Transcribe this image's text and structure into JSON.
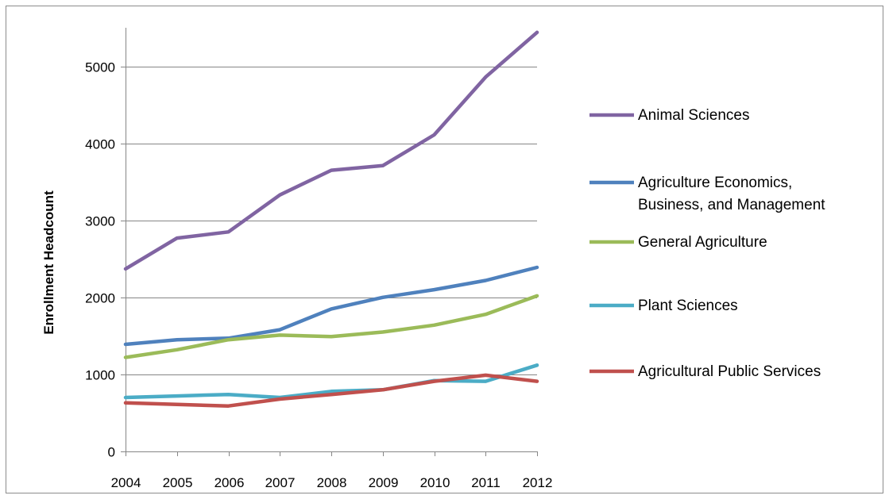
{
  "chart_data": {
    "type": "line",
    "title": "",
    "xlabel": "",
    "ylabel": "Enrollment Headcount",
    "ylim": [
      0,
      5500
    ],
    "yticks": [
      0,
      1000,
      2000,
      3000,
      4000,
      5000
    ],
    "grid": "horizontal",
    "legend_position": "right",
    "categories": [
      "2004",
      "2005",
      "2006",
      "2007",
      "2008",
      "2009",
      "2010",
      "2011",
      "2012"
    ],
    "series": [
      {
        "name": "Animal Sciences",
        "color": "#8064A2",
        "values": [
          2370,
          2770,
          2850,
          3330,
          3650,
          3710,
          4110,
          4860,
          5440
        ]
      },
      {
        "name": "Agriculture Economics, Business, and Management",
        "legend_lines": [
          "Agriculture Economics,",
          "Business, and Management"
        ],
        "color": "#4F81BD",
        "values": [
          1390,
          1450,
          1470,
          1580,
          1850,
          2000,
          2100,
          2220,
          2390
        ]
      },
      {
        "name": "General Agriculture",
        "color": "#9BBB59",
        "values": [
          1220,
          1320,
          1450,
          1510,
          1490,
          1550,
          1640,
          1780,
          2020
        ]
      },
      {
        "name": "Plant Sciences",
        "color": "#4BACC6",
        "values": [
          700,
          720,
          740,
          700,
          780,
          800,
          920,
          910,
          1120
        ]
      },
      {
        "name": "Agricultural Public Services",
        "color": "#C0504D",
        "values": [
          630,
          610,
          590,
          680,
          740,
          800,
          910,
          990,
          910
        ]
      }
    ]
  }
}
